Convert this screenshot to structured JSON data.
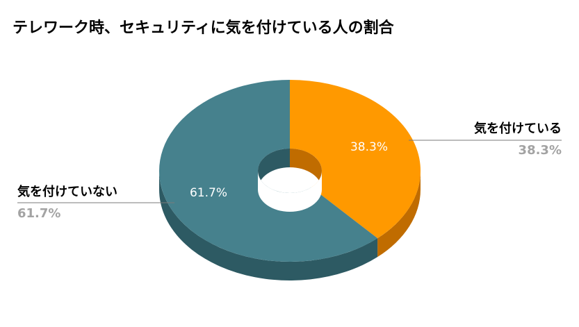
{
  "chart_data": {
    "type": "pie",
    "title": "テレワーク時、セキュリティに気を付けている人の割合",
    "variant": "3d-donut",
    "categories": [
      "気を付けている",
      "気を付けていない"
    ],
    "values": [
      38.3,
      61.7
    ],
    "value_labels": [
      "38.3%",
      "61.7%"
    ],
    "colors": [
      "#ff9900",
      "#46818d"
    ],
    "side_colors": [
      "#c06c00",
      "#2d5a63"
    ],
    "label_position": "outside"
  }
}
